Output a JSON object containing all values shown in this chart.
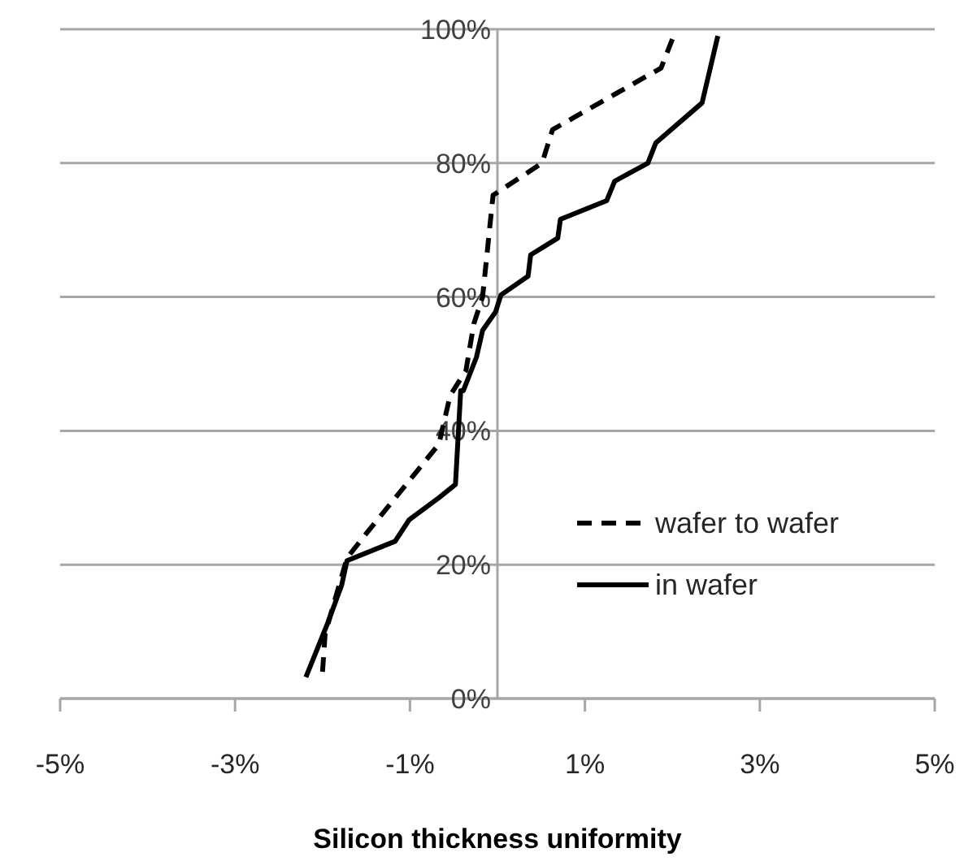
{
  "chart_data": {
    "type": "line",
    "xlabel": "Silicon thickness  uniformity",
    "xlim": [
      -5,
      5
    ],
    "xticks": [
      {
        "value": -5,
        "label": "-5%"
      },
      {
        "value": -3,
        "label": "-3%"
      },
      {
        "value": -1,
        "label": "-1%"
      },
      {
        "value": 1,
        "label": "1%"
      },
      {
        "value": 3,
        "label": "3%"
      },
      {
        "value": 5,
        "label": "5%"
      }
    ],
    "ylim": [
      0,
      100
    ],
    "yticks": [
      {
        "value": 0,
        "label": "0%"
      },
      {
        "value": 20,
        "label": "20%"
      },
      {
        "value": 40,
        "label": "40%"
      },
      {
        "value": 60,
        "label": "60%"
      },
      {
        "value": 80,
        "label": "80%"
      },
      {
        "value": 100,
        "label": "100%"
      }
    ],
    "grid": "y",
    "legend": "right",
    "marker": "none",
    "series": [
      {
        "name": "wafer to wafer",
        "color": "#000000",
        "line_style": "dashed",
        "x": [
          -2.0,
          -1.97,
          -1.72,
          -1.54,
          -0.67,
          -0.54,
          -0.36,
          -0.27,
          -0.17,
          -0.05,
          0.51,
          0.63,
          1.87,
          2.03
        ],
        "values": [
          4,
          9.7,
          21,
          24,
          38,
          45.3,
          49,
          56,
          60,
          75.2,
          80,
          85,
          94.2,
          99.5
        ]
      },
      {
        "name": "in wafer",
        "color": "#000000",
        "line_style": "solid",
        "x": [
          -2.19,
          -1.94,
          -1.78,
          -1.72,
          -1.17,
          -1.01,
          -0.67,
          -0.48,
          -0.42,
          -0.39,
          -0.24,
          -0.17,
          -0.02,
          0.04,
          0.35,
          0.38,
          0.69,
          0.72,
          1.25,
          1.34,
          1.72,
          1.81,
          2.34,
          2.52
        ],
        "values": [
          3.2,
          11.3,
          17,
          20.6,
          23.5,
          26.7,
          30,
          32,
          46,
          46,
          51,
          55,
          57.8,
          60.3,
          63.1,
          66.3,
          68.8,
          71.6,
          74.4,
          77.3,
          80,
          83,
          89,
          99
        ]
      }
    ]
  }
}
